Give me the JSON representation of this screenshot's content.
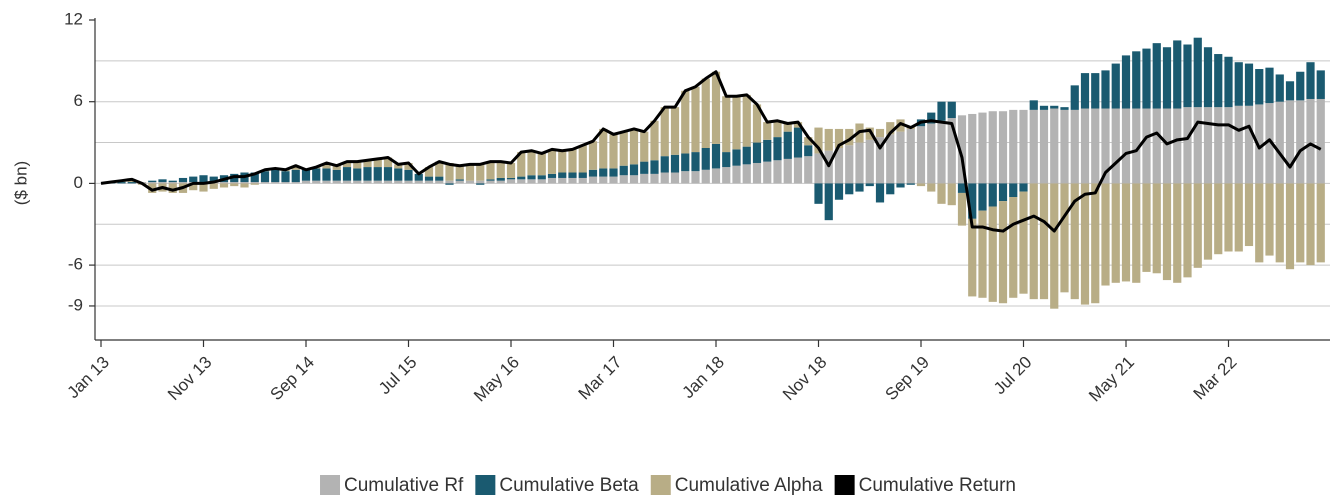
{
  "chart_data": {
    "type": "bar",
    "stacked": true,
    "y_label": "($ bn)",
    "categories": [
      "Jan 13",
      null,
      null,
      null,
      null,
      null,
      null,
      null,
      null,
      null,
      "Nov 13",
      null,
      null,
      null,
      null,
      null,
      null,
      null,
      null,
      null,
      "Sep 14",
      null,
      null,
      null,
      null,
      null,
      null,
      null,
      null,
      null,
      "Jul 15",
      null,
      null,
      null,
      null,
      null,
      null,
      null,
      null,
      null,
      "May 16",
      null,
      null,
      null,
      null,
      null,
      null,
      null,
      null,
      null,
      "Mar 17",
      null,
      null,
      null,
      null,
      null,
      null,
      null,
      null,
      null,
      "Jan 18",
      null,
      null,
      null,
      null,
      null,
      null,
      null,
      null,
      null,
      "Nov 18",
      null,
      null,
      null,
      null,
      null,
      null,
      null,
      null,
      null,
      "Sep 19",
      null,
      null,
      null,
      null,
      null,
      null,
      null,
      null,
      null,
      "Jul 20",
      null,
      null,
      null,
      null,
      null,
      null,
      null,
      null,
      null,
      "May 21",
      null,
      null,
      null,
      null,
      null,
      null,
      null,
      null,
      null,
      "Mar 22",
      null,
      null,
      null,
      null,
      null,
      null,
      null,
      null,
      null
    ],
    "series": [
      {
        "name": "Cumulative Rf",
        "type": "bar",
        "color": "#b3b3b3",
        "values": [
          0,
          0,
          0,
          0,
          0.1,
          0.1,
          0.1,
          0.1,
          0.1,
          0.1,
          0.1,
          0.1,
          0.1,
          0.1,
          0.1,
          0.1,
          0.1,
          0.1,
          0.1,
          0.1,
          0.2,
          0.2,
          0.2,
          0.2,
          0.2,
          0.2,
          0.2,
          0.2,
          0.2,
          0.2,
          0.2,
          0.2,
          0.2,
          0.2,
          0.2,
          0.2,
          0.2,
          0.2,
          0.2,
          0.2,
          0.3,
          0.3,
          0.3,
          0.3,
          0.4,
          0.4,
          0.4,
          0.4,
          0.5,
          0.5,
          0.5,
          0.6,
          0.6,
          0.7,
          0.7,
          0.8,
          0.8,
          0.9,
          0.9,
          1.0,
          1.1,
          1.2,
          1.3,
          1.4,
          1.5,
          1.6,
          1.7,
          1.8,
          1.9,
          2.0,
          2.2,
          2.4,
          2.6,
          2.8,
          3.0,
          3.2,
          3.4,
          3.6,
          3.8,
          4.0,
          4.2,
          4.4,
          4.6,
          4.8,
          5.0,
          5.1,
          5.2,
          5.3,
          5.3,
          5.4,
          5.4,
          5.4,
          5.4,
          5.5,
          5.4,
          5.4,
          5.5,
          5.5,
          5.5,
          5.5,
          5.5,
          5.5,
          5.5,
          5.5,
          5.5,
          5.5,
          5.6,
          5.6,
          5.6,
          5.6,
          5.6,
          5.7,
          5.7,
          5.8,
          5.9,
          6.0,
          6.1,
          6.1,
          6.2,
          6.2
        ]
      },
      {
        "name": "Cumulative Beta",
        "type": "bar",
        "color": "#1a5a70",
        "values": [
          0,
          0.1,
          0.1,
          0.1,
          0,
          0.1,
          0.2,
          0.1,
          0.3,
          0.4,
          0.5,
          0.4,
          0.5,
          0.6,
          0.7,
          0.7,
          0.8,
          0.9,
          0.8,
          0.9,
          0.8,
          0.9,
          0.9,
          0.8,
          1.0,
          0.9,
          1.0,
          1.0,
          1.0,
          0.9,
          0.8,
          0.5,
          0.3,
          0.3,
          -0.1,
          0.1,
          0,
          -0.1,
          0.1,
          0.2,
          0.1,
          0.2,
          0.3,
          0.3,
          0.3,
          0.4,
          0.4,
          0.4,
          0.5,
          0.6,
          0.6,
          0.7,
          0.8,
          0.9,
          1.0,
          1.2,
          1.3,
          1.3,
          1.4,
          1.6,
          1.8,
          1.1,
          1.2,
          1.3,
          1.5,
          1.6,
          1.7,
          2.0,
          2.2,
          0.8,
          -1.5,
          -2.7,
          -1.2,
          -0.8,
          -0.6,
          -0.2,
          -1.4,
          -0.8,
          -0.3,
          -0.1,
          0.5,
          0.8,
          1.4,
          1.2,
          -0.7,
          -2.6,
          -2.0,
          -1.7,
          -1.3,
          -1.0,
          -0.6,
          0.7,
          0.3,
          0.2,
          0.2,
          1.8,
          2.6,
          2.6,
          2.8,
          3.3,
          3.9,
          4.2,
          4.4,
          4.8,
          4.5,
          5.0,
          4.6,
          5.1,
          4.4,
          3.9,
          3.7,
          3.2,
          3.1,
          2.6,
          2.6,
          2.0,
          1.4,
          2.1,
          2.7,
          2.1
        ]
      },
      {
        "name": "Cumulative Alpha",
        "type": "bar",
        "color": "#b8ad86",
        "values": [
          0,
          0,
          0.1,
          0.2,
          -0.1,
          -0.7,
          -0.6,
          -0.7,
          -0.7,
          -0.5,
          -0.6,
          -0.4,
          -0.3,
          -0.2,
          -0.3,
          -0.1,
          0.1,
          0.1,
          0.1,
          0.3,
          0,
          0.1,
          0.4,
          0.3,
          0.4,
          0.5,
          0.5,
          0.6,
          0.7,
          0.3,
          0.5,
          0,
          0.7,
          1.1,
          1.3,
          1.0,
          1.2,
          1.3,
          1.3,
          1.2,
          1.1,
          1.8,
          1.8,
          1.6,
          1.8,
          1.6,
          1.7,
          2.0,
          2.1,
          2.9,
          2.5,
          2.5,
          2.6,
          2.2,
          2.9,
          3.6,
          3.5,
          4.6,
          4.8,
          5.1,
          5.3,
          4.1,
          3.9,
          3.8,
          2.8,
          1.3,
          1.2,
          0.6,
          0.4,
          0.6,
          1.9,
          1.6,
          1.4,
          1.2,
          1.4,
          0.9,
          0.6,
          0.9,
          0.9,
          0.2,
          -0.2,
          -0.6,
          -1.5,
          -1.6,
          -2.4,
          -5.7,
          -6.4,
          -7.0,
          -7.5,
          -7.4,
          -7.5,
          -8.5,
          -8.5,
          -9.2,
          -8.0,
          -8.5,
          -8.9,
          -8.8,
          -7.5,
          -7.3,
          -7.2,
          -7.3,
          -6.5,
          -6.6,
          -7.1,
          -7.3,
          -6.9,
          -6.2,
          -5.6,
          -5.2,
          -5.0,
          -5.0,
          -4.6,
          -5.8,
          -5.3,
          -5.8,
          -6.3,
          -5.8,
          -6.0,
          -5.8
        ]
      },
      {
        "name": "Cumulative Return",
        "type": "line",
        "color": "#000000",
        "values": [
          0,
          0.1,
          0.2,
          0.3,
          0,
          -0.5,
          -0.3,
          -0.5,
          -0.3,
          0,
          0,
          0.1,
          0.3,
          0.5,
          0.5,
          0.7,
          1.0,
          1.1,
          1.0,
          1.3,
          1.0,
          1.2,
          1.5,
          1.3,
          1.6,
          1.6,
          1.7,
          1.8,
          1.9,
          1.4,
          1.5,
          0.7,
          1.2,
          1.6,
          1.4,
          1.3,
          1.4,
          1.4,
          1.6,
          1.6,
          1.5,
          2.3,
          2.4,
          2.2,
          2.5,
          2.4,
          2.5,
          2.8,
          3.1,
          4.0,
          3.6,
          3.8,
          4.0,
          3.8,
          4.6,
          5.6,
          5.6,
          6.8,
          7.1,
          7.7,
          8.2,
          6.4,
          6.4,
          6.5,
          5.8,
          4.5,
          4.6,
          4.4,
          4.5,
          3.4,
          2.6,
          1.3,
          2.8,
          3.2,
          3.8,
          3.9,
          2.6,
          3.7,
          4.4,
          4.1,
          4.5,
          4.6,
          4.5,
          4.4,
          1.9,
          -3.2,
          -3.2,
          -3.4,
          -3.5,
          -3.0,
          -2.7,
          -2.4,
          -2.8,
          -3.5,
          -2.4,
          -1.3,
          -0.8,
          -0.7,
          0.8,
          1.5,
          2.2,
          2.4,
          3.4,
          3.7,
          2.9,
          3.2,
          3.3,
          4.5,
          4.4,
          4.3,
          4.3,
          3.9,
          4.2,
          2.6,
          3.2,
          2.2,
          1.2,
          2.4,
          2.9,
          2.5
        ]
      }
    ],
    "ylim": [
      -11.5,
      12
    ],
    "yticks": [
      -9,
      -6,
      0,
      6,
      12
    ],
    "grid_lines": [
      -9,
      -6,
      -3,
      0,
      3,
      6,
      9
    ],
    "legend": "bottom"
  }
}
